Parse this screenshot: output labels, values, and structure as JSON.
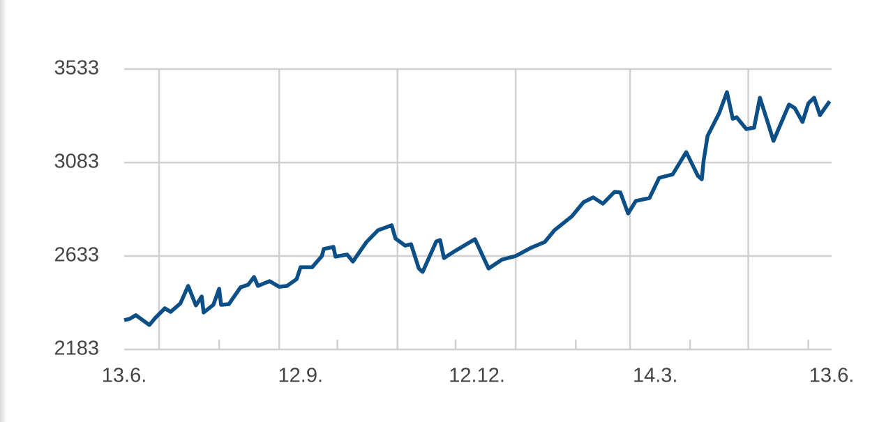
{
  "chart_data": {
    "type": "line",
    "x": [
      0,
      3,
      6,
      10,
      13,
      16,
      21,
      24,
      29,
      33,
      37,
      40,
      41,
      46,
      49,
      50,
      54,
      60,
      64,
      67,
      69,
      75,
      80,
      84,
      89,
      91,
      97,
      102,
      103,
      108,
      109,
      115,
      118,
      125,
      131,
      138,
      140,
      145,
      148,
      152,
      154,
      161,
      163,
      165,
      170,
      181,
      188,
      195,
      202,
      210,
      217,
      222,
      231,
      237,
      242,
      247,
      253,
      256,
      260,
      264,
      271,
      276,
      283,
      290,
      296,
      298,
      299,
      301,
      307,
      311,
      314,
      316,
      321,
      325,
      328,
      332,
      335,
      343,
      346,
      350,
      353,
      356,
      359,
      364
    ],
    "values": [
      2324,
      2331,
      2348,
      2321,
      2301,
      2334,
      2381,
      2364,
      2405,
      2489,
      2395,
      2438,
      2361,
      2398,
      2475,
      2398,
      2401,
      2482,
      2495,
      2532,
      2489,
      2512,
      2485,
      2489,
      2522,
      2579,
      2579,
      2633,
      2667,
      2677,
      2630,
      2640,
      2606,
      2700,
      2757,
      2781,
      2717,
      2683,
      2690,
      2573,
      2556,
      2703,
      2710,
      2623,
      2653,
      2714,
      2573,
      2616,
      2633,
      2673,
      2700,
      2757,
      2824,
      2892,
      2915,
      2885,
      2942,
      2939,
      2838,
      2898,
      2912,
      3009,
      3026,
      3133,
      3019,
      3002,
      3093,
      3211,
      3321,
      3422,
      3294,
      3301,
      3244,
      3251,
      3395,
      3278,
      3187,
      3362,
      3345,
      3278,
      3368,
      3395,
      3311,
      3378
    ],
    "color": "#0b4f86",
    "xlim": [
      0,
      365
    ],
    "xticks": [
      {
        "value": 0,
        "label": "13.6."
      },
      {
        "value": 91,
        "label": "12.9."
      },
      {
        "value": 182,
        "label": "12.12."
      },
      {
        "value": 274,
        "label": "14.3."
      },
      {
        "value": 365,
        "label": "13.6."
      }
    ],
    "xgrid": [
      18,
      80,
      141,
      202,
      261,
      322
    ],
    "xminor": [
      49,
      110,
      171,
      233,
      292,
      353
    ],
    "ylim": [
      2183,
      3533
    ],
    "yticks": [
      2183,
      2633,
      3083,
      3533
    ],
    "grid": true
  }
}
